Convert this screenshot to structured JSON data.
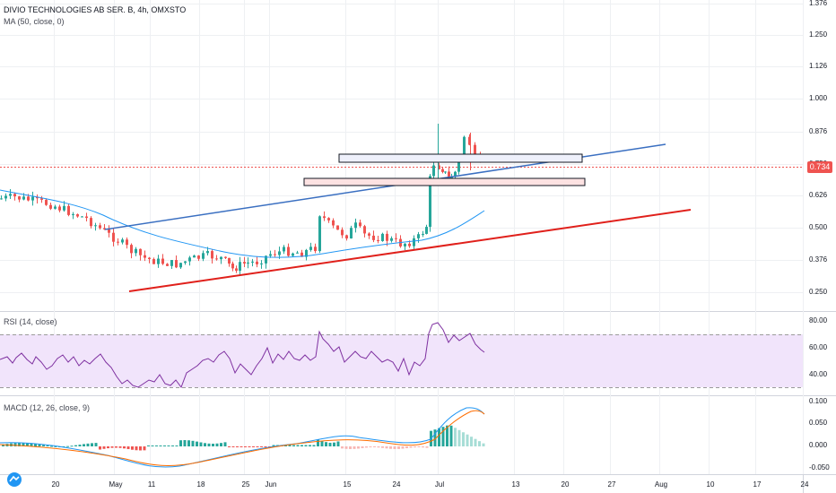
{
  "header": {
    "symbol_title": "DIVIO TECHNOLOGIES AB SER. B, 4h, OMXSTO",
    "ma_label": "MA (50, close, 0)",
    "rsi_label": "RSI (14, close)",
    "macd_label": "MACD (12, 26, close, 9)"
  },
  "colors": {
    "up": "#26a69a",
    "down": "#ef5350",
    "ma": "#2196f3",
    "trend_upper": "#3a6fc1",
    "trend_lower": "#e0201b",
    "rsi_line": "#7e30a0",
    "rsi_band": "#f1e4fb",
    "macd_line": "#2196f3",
    "signal_line": "#ff6d00",
    "last_price_tag": "#ef5350",
    "grid": "#eef0f3"
  },
  "price_axis": {
    "ticks": [
      "1.376",
      "1.250",
      "1.126",
      "1.000",
      "0.876",
      "0.750",
      "0.626",
      "0.500",
      "0.376",
      "0.250"
    ],
    "last_price": "0.734"
  },
  "rsi_axis": {
    "ticks": [
      "80.00",
      "60.00",
      "40.00"
    ]
  },
  "macd_axis": {
    "ticks": [
      "0.100",
      "0.050",
      "0.000",
      "-0.050"
    ]
  },
  "time_axis": {
    "labels": [
      "20",
      "May",
      "11",
      "18",
      "25",
      "Jun",
      "15",
      "24",
      "Jul",
      "13",
      "20",
      "27",
      "Aug",
      "10",
      "17",
      "24"
    ]
  },
  "chart_data": {
    "type": "candlestick",
    "instrument": "DIVIO TECHNOLOGIES AB SER. B",
    "interval": "4h",
    "price_range": [
      0.2,
      1.4
    ],
    "last_price": 0.734,
    "moving_average": {
      "name": "MA (50, close, 0)",
      "points": [
        [
          "Apr 24",
          0.6
        ],
        [
          "May 4",
          0.52
        ],
        [
          "May 18",
          0.44
        ],
        [
          "May 28",
          0.38
        ],
        [
          "Jun 8",
          0.39
        ],
        [
          "Jun 22",
          0.43
        ],
        [
          "Jul 1",
          0.47
        ],
        [
          "Jul 8",
          0.56
        ]
      ]
    },
    "trendlines": [
      {
        "name": "upper",
        "from": [
          "May 1",
          0.51
        ],
        "to": [
          "Jul 25",
          0.81
        ]
      },
      {
        "name": "lower",
        "from": [
          "May 2",
          0.25
        ],
        "to": [
          "Aug 6",
          0.56
        ]
      }
    ],
    "zones": [
      {
        "from": "Jun 15",
        "to": "Jul 22",
        "top": 0.765,
        "bottom": 0.74
      },
      {
        "from": "Jun 8",
        "to": "Jul 22",
        "top": 0.69,
        "bottom": 0.67
      }
    ],
    "series_close": [
      [
        "Apr 14",
        0.64
      ],
      [
        "Apr 18",
        0.62
      ],
      [
        "Apr 22",
        0.63
      ],
      [
        "Apr 26",
        0.6
      ],
      [
        "Apr 29",
        0.55
      ],
      [
        "May 1",
        0.49
      ],
      [
        "May 5",
        0.43
      ],
      [
        "May 8",
        0.4
      ],
      [
        "May 12",
        0.38
      ],
      [
        "May 15",
        0.36
      ],
      [
        "May 19",
        0.35
      ],
      [
        "May 22",
        0.38
      ],
      [
        "May 26",
        0.37
      ],
      [
        "May 29",
        0.35
      ],
      [
        "Jun 2",
        0.38
      ],
      [
        "Jun 5",
        0.4
      ],
      [
        "Jun 9",
        0.42
      ],
      [
        "Jun 11",
        0.62
      ],
      [
        "Jun 14",
        0.5
      ],
      [
        "Jun 17",
        0.55
      ],
      [
        "Jun 21",
        0.47
      ],
      [
        "Jun 24",
        0.46
      ],
      [
        "Jun 27",
        0.44
      ],
      [
        "Jun 30",
        0.55
      ],
      [
        "Jul 1",
        0.74
      ],
      [
        "Jul 3",
        0.69
      ],
      [
        "Jul 6",
        0.72
      ],
      [
        "Jul 7",
        0.82
      ],
      [
        "Jul 8",
        0.85
      ],
      [
        "Jul 10",
        0.734
      ]
    ],
    "rsi": {
      "name": "RSI (14, close)",
      "range": [
        20,
        85
      ],
      "bands": [
        30,
        70
      ],
      "points": [
        [
          "Apr 14",
          55
        ],
        [
          "Apr 24",
          54
        ],
        [
          "May 4",
          45
        ],
        [
          "May 8",
          35
        ],
        [
          "May 12",
          28
        ],
        [
          "May 20",
          38
        ],
        [
          "May 28",
          42
        ],
        [
          "Jun 2",
          55
        ],
        [
          "Jun 9",
          52
        ],
        [
          "Jun 11",
          75
        ],
        [
          "Jun 17",
          55
        ],
        [
          "Jun 24",
          50
        ],
        [
          "Jun 28",
          44
        ],
        [
          "Jul 1",
          80
        ],
        [
          "Jul 5",
          72
        ],
        [
          "Jul 8",
          74
        ],
        [
          "Jul 10",
          57
        ]
      ]
    },
    "macd": {
      "name": "MACD (12, 26, close, 9)",
      "range": [
        -0.06,
        0.11
      ],
      "macd_points": [
        [
          "Apr 14",
          0.002
        ],
        [
          "Apr 28",
          -0.008
        ],
        [
          "May 8",
          -0.04
        ],
        [
          "May 15",
          -0.05
        ],
        [
          "May 22",
          -0.03
        ],
        [
          "Jun 2",
          0.0
        ],
        [
          "Jun 11",
          0.03
        ],
        [
          "Jun 20",
          0.01
        ],
        [
          "Jun 30",
          0.005
        ],
        [
          "Jul 1",
          0.06
        ],
        [
          "Jul 5",
          0.09
        ],
        [
          "Jul 8",
          0.085
        ]
      ],
      "signal_points": [
        [
          "Apr 14",
          0.0
        ],
        [
          "Apr 28",
          -0.005
        ],
        [
          "May 8",
          -0.03
        ],
        [
          "May 18",
          -0.045
        ],
        [
          "May 28",
          -0.03
        ],
        [
          "Jun 8",
          0.01
        ],
        [
          "Jun 20",
          0.015
        ],
        [
          "Jun 30",
          0.008
        ],
        [
          "Jul 3",
          0.04
        ],
        [
          "Jul 8",
          0.075
        ]
      ]
    }
  }
}
